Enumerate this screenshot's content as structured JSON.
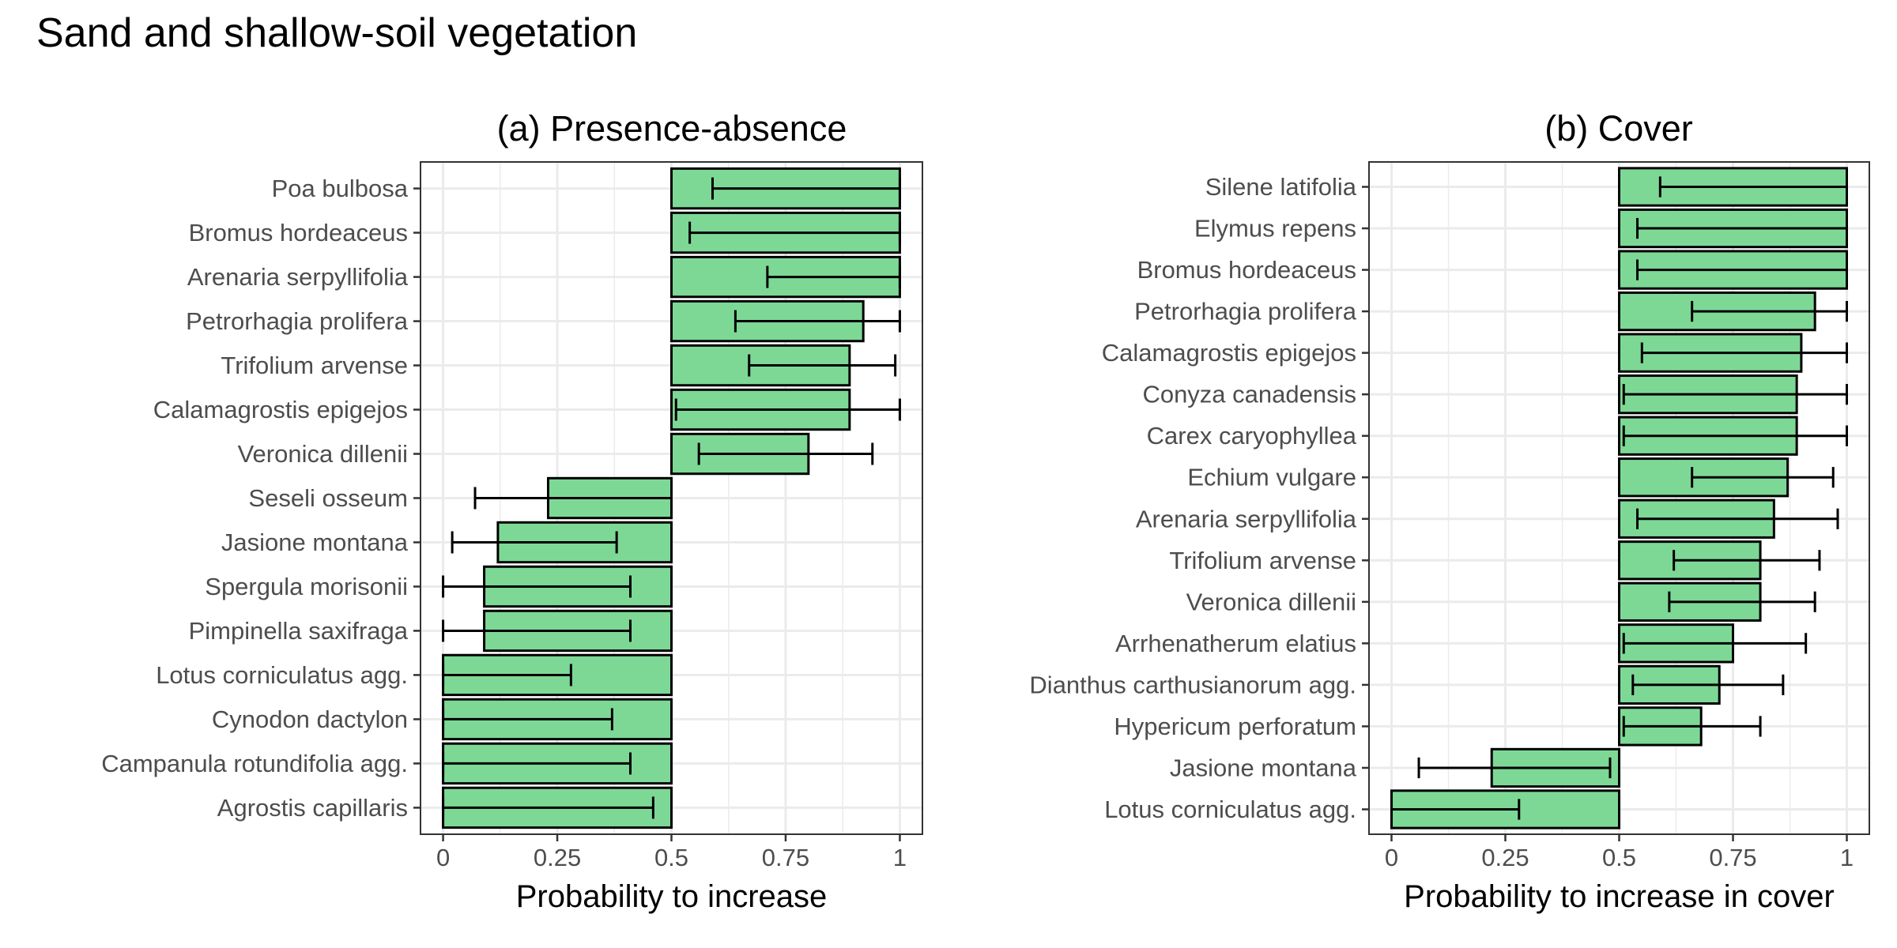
{
  "page": {
    "title": "Sand and shallow-soil vegetation"
  },
  "colors": {
    "bar_fill": "#7dd896",
    "bar_stroke": "#000000",
    "grid": "#ebebeb",
    "panel_border": "#333333"
  },
  "chart_data": [
    {
      "type": "bar",
      "orientation": "horizontal",
      "title": "(a) Presence-absence",
      "xlabel": "Probability to increase",
      "ylabel": "",
      "xlim": [
        0,
        1
      ],
      "baseline": 0.5,
      "xticks": [
        0,
        0.25,
        0.5,
        0.75,
        1
      ],
      "xtick_labels": [
        "0",
        "0.25",
        "0.5",
        "0.75",
        "1"
      ],
      "grid": true,
      "categories": [
        "Poa bulbosa",
        "Bromus hordeaceus",
        "Arenaria serpyllifolia",
        "Petrorhagia prolifera",
        "Trifolium arvense",
        "Calamagrostis epigejos",
        "Veronica dillenii",
        "Seseli osseum",
        "Jasione montana",
        "Spergula morisonii",
        "Pimpinella saxifraga",
        "Lotus corniculatus agg.",
        "Cynodon dactylon",
        "Campanula rotundifolia agg.",
        "Agrostis capillaris"
      ],
      "values": [
        1.0,
        1.0,
        1.0,
        0.92,
        0.89,
        0.89,
        0.8,
        0.23,
        0.12,
        0.09,
        0.09,
        0.0,
        0.0,
        0.0,
        0.0
      ],
      "error_low": [
        0.59,
        0.54,
        0.71,
        0.64,
        0.67,
        0.51,
        0.56,
        0.07,
        0.02,
        0.0,
        0.0,
        0.0,
        0.0,
        0.0,
        0.0
      ],
      "error_high": [
        1.0,
        1.0,
        1.0,
        1.0,
        0.99,
        1.0,
        0.94,
        0.5,
        0.38,
        0.41,
        0.41,
        0.28,
        0.37,
        0.41,
        0.46
      ]
    },
    {
      "type": "bar",
      "orientation": "horizontal",
      "title": "(b) Cover",
      "xlabel": "Probability to increase in cover",
      "ylabel": "",
      "xlim": [
        0,
        1
      ],
      "baseline": 0.5,
      "xticks": [
        0,
        0.25,
        0.5,
        0.75,
        1
      ],
      "xtick_labels": [
        "0",
        "0.25",
        "0.5",
        "0.75",
        "1"
      ],
      "grid": true,
      "categories": [
        "Silene latifolia",
        "Elymus repens",
        "Bromus hordeaceus",
        "Petrorhagia prolifera",
        "Calamagrostis epigejos",
        "Conyza canadensis",
        "Carex caryophyllea",
        "Echium vulgare",
        "Arenaria serpyllifolia",
        "Trifolium arvense",
        "Veronica dillenii",
        "Arrhenatherum elatius",
        "Dianthus carthusianorum agg.",
        "Hypericum perforatum",
        "Jasione montana",
        "Lotus corniculatus agg."
      ],
      "values": [
        1.0,
        1.0,
        1.0,
        0.93,
        0.9,
        0.89,
        0.89,
        0.87,
        0.84,
        0.81,
        0.81,
        0.75,
        0.72,
        0.68,
        0.22,
        0.0
      ],
      "error_low": [
        0.59,
        0.54,
        0.54,
        0.66,
        0.55,
        0.51,
        0.51,
        0.66,
        0.54,
        0.62,
        0.61,
        0.51,
        0.53,
        0.51,
        0.06,
        0.0
      ],
      "error_high": [
        1.0,
        1.0,
        1.0,
        1.0,
        1.0,
        1.0,
        1.0,
        0.97,
        0.98,
        0.94,
        0.93,
        0.91,
        0.86,
        0.81,
        0.48,
        0.28
      ]
    }
  ]
}
